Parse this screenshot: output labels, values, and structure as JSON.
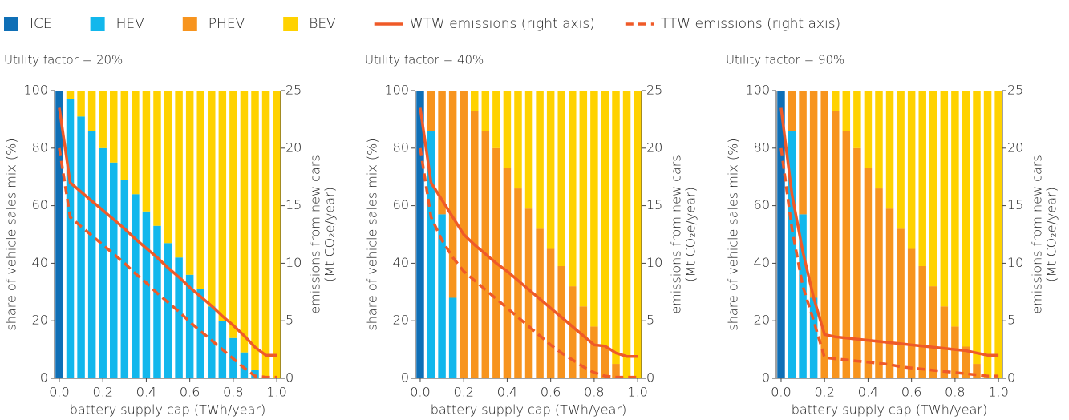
{
  "chart_data": [
    {
      "type": "bar",
      "stacked": true,
      "title": "Utility factor = 20%",
      "x": [
        0,
        0.05,
        0.1,
        0.15,
        0.2,
        0.25,
        0.3,
        0.35,
        0.4,
        0.45,
        0.5,
        0.55,
        0.6,
        0.65,
        0.7,
        0.75,
        0.8,
        0.85,
        0.9,
        0.95,
        1.0
      ],
      "xlabel": "battery supply cap (TWh/year)",
      "ylabel": "share of vehicle sales mix (%)",
      "y2label": [
        "emissions from new cars",
        "(Mt CO₂e/year)"
      ],
      "xlim": [
        -0.022,
        1.018
      ],
      "xticks": [
        {
          "value": 0,
          "label": "0.0"
        },
        {
          "value": 0.2,
          "label": "0.2"
        },
        {
          "value": 0.4,
          "label": "0.4"
        },
        {
          "value": 0.6,
          "label": "0.6"
        },
        {
          "value": 0.8,
          "label": "0.8"
        },
        {
          "value": 1,
          "label": "1.0"
        }
      ],
      "ylim": [
        0,
        100
      ],
      "yticks": [
        0,
        20,
        40,
        60,
        80,
        100
      ],
      "y2lim": [
        0,
        25
      ],
      "y2ticks": [
        0,
        5,
        10,
        15,
        20,
        25
      ],
      "series": [
        {
          "name": "ICE",
          "color": "#0f6fb6",
          "values": [
            100,
            0,
            0,
            0,
            0,
            0,
            0,
            0,
            0,
            0,
            0,
            0,
            0,
            0,
            0,
            0,
            0,
            0,
            0,
            0,
            0
          ]
        },
        {
          "name": "HEV",
          "color": "#12b7ec",
          "values": [
            0,
            97,
            91,
            86,
            80,
            75,
            69,
            64,
            58,
            53,
            47,
            42,
            36,
            31,
            25,
            20,
            14,
            9,
            3,
            0,
            0
          ]
        },
        {
          "name": "PHEV",
          "color": "#f7941e",
          "values": [
            0,
            0,
            0,
            0,
            0,
            0,
            0,
            0,
            0,
            0,
            0,
            0,
            0,
            0,
            0,
            0,
            0,
            0,
            0,
            0,
            0
          ]
        },
        {
          "name": "BEV",
          "color": "#ffd200",
          "values": [
            0,
            3,
            9,
            14,
            20,
            25,
            31,
            36,
            42,
            47,
            53,
            58,
            64,
            69,
            75,
            80,
            86,
            91,
            97,
            100,
            100
          ]
        },
        {
          "name": "WTW emissions (right axis)",
          "type": "line",
          "axis": "y2",
          "color": "#ef5a28",
          "dashed": false,
          "values": [
            23.5,
            17,
            16.2,
            15.4,
            14.6,
            13.8,
            13,
            12.1,
            11.3,
            10.5,
            9.6,
            8.8,
            7.9,
            7.1,
            6.3,
            5.4,
            4.6,
            3.7,
            2.7,
            2,
            2
          ]
        },
        {
          "name": "TTW emissions (right axis)",
          "type": "line",
          "axis": "y2",
          "color": "#ef5a28",
          "dashed": true,
          "values": [
            20,
            14,
            13.2,
            12.4,
            11.6,
            10.8,
            10,
            9.1,
            8.3,
            7.4,
            6.6,
            5.8,
            4.9,
            4.1,
            3.3,
            2.5,
            1.7,
            0.9,
            0.2,
            0.1,
            0.1
          ]
        }
      ]
    },
    {
      "type": "bar",
      "stacked": true,
      "title": "Utility factor = 40%",
      "x": [
        0,
        0.05,
        0.1,
        0.15,
        0.2,
        0.25,
        0.3,
        0.35,
        0.4,
        0.45,
        0.5,
        0.55,
        0.6,
        0.65,
        0.7,
        0.75,
        0.8,
        0.85,
        0.9,
        0.95,
        1.0
      ],
      "xlabel": "battery supply cap (TWh/year)",
      "ylabel": "share of vehicle sales mix (%)",
      "y2label": [
        "emissions from new cars",
        "(Mt CO₂e/year)"
      ],
      "xlim": [
        -0.022,
        1.018
      ],
      "xticks": [
        {
          "value": 0,
          "label": "0.0"
        },
        {
          "value": 0.2,
          "label": "0.2"
        },
        {
          "value": 0.4,
          "label": "0.4"
        },
        {
          "value": 0.6,
          "label": "0.6"
        },
        {
          "value": 0.8,
          "label": "0.8"
        },
        {
          "value": 1,
          "label": "1.0"
        }
      ],
      "ylim": [
        0,
        100
      ],
      "yticks": [
        0,
        20,
        40,
        60,
        80,
        100
      ],
      "y2lim": [
        0,
        25
      ],
      "y2ticks": [
        0,
        5,
        10,
        15,
        20,
        25
      ],
      "series": [
        {
          "color": "#0f6fb6",
          "values": [
            100,
            0,
            0,
            0,
            0,
            0,
            0,
            0,
            0,
            0,
            0,
            0,
            0,
            0,
            0,
            0,
            0,
            0,
            0,
            0,
            0
          ]
        },
        {
          "color": "#12b7ec",
          "values": [
            0,
            86,
            57,
            28,
            0,
            0,
            0,
            0,
            0,
            0,
            0,
            0,
            0,
            0,
            0,
            0,
            0,
            0,
            0,
            0,
            0
          ]
        },
        {
          "color": "#f7941e",
          "values": [
            0,
            14,
            43,
            72,
            100,
            93,
            86,
            80,
            73,
            66,
            59,
            52,
            45,
            39,
            32,
            25,
            18,
            11,
            5,
            0,
            0
          ]
        },
        {
          "color": "#ffd200",
          "values": [
            0,
            0,
            0,
            0,
            0,
            7,
            14,
            20,
            27,
            34,
            41,
            48,
            55,
            61,
            68,
            75,
            82,
            89,
            95,
            100,
            100
          ]
        },
        {
          "type": "line",
          "axis": "y2",
          "color": "#ef5a28",
          "dashed": false,
          "values": [
            23.5,
            17,
            15.5,
            14,
            12.5,
            11.6,
            10.8,
            10,
            9.3,
            8.5,
            7.7,
            6.9,
            6.1,
            5.3,
            4.5,
            3.7,
            2.9,
            2.8,
            2.2,
            1.9,
            1.9
          ]
        },
        {
          "type": "line",
          "axis": "y2",
          "color": "#ef5a28",
          "dashed": true,
          "values": [
            20,
            14,
            12,
            10.5,
            9.3,
            8.5,
            7.7,
            6.9,
            6.1,
            5.3,
            4.5,
            3.7,
            2.9,
            2.2,
            1.6,
            1,
            0.5,
            0.2,
            0.1,
            0.1,
            0.1
          ]
        }
      ]
    },
    {
      "type": "bar",
      "stacked": true,
      "title": "Utility factor = 90%",
      "x": [
        0,
        0.05,
        0.1,
        0.15,
        0.2,
        0.25,
        0.3,
        0.35,
        0.4,
        0.45,
        0.5,
        0.55,
        0.6,
        0.65,
        0.7,
        0.75,
        0.8,
        0.85,
        0.9,
        0.95,
        1.0
      ],
      "xlabel": "battery supply cap (TWh/year)",
      "ylabel": "share of vehicle sales mix (%)",
      "y2label": [
        "emissions from new cars",
        "(Mt CO₂e/year)"
      ],
      "xlim": [
        -0.022,
        1.018
      ],
      "xticks": [
        {
          "value": 0,
          "label": "0.0"
        },
        {
          "value": 0.2,
          "label": "0.2"
        },
        {
          "value": 0.4,
          "label": "0.4"
        },
        {
          "value": 0.6,
          "label": "0.6"
        },
        {
          "value": 0.8,
          "label": "0.8"
        },
        {
          "value": 1,
          "label": "1.0"
        }
      ],
      "ylim": [
        0,
        100
      ],
      "yticks": [
        0,
        20,
        40,
        60,
        80,
        100
      ],
      "y2lim": [
        0,
        25
      ],
      "y2ticks": [
        0,
        5,
        10,
        15,
        20,
        25
      ],
      "series": [
        {
          "color": "#0f6fb6",
          "values": [
            100,
            0,
            0,
            0,
            0,
            0,
            0,
            0,
            0,
            0,
            0,
            0,
            0,
            0,
            0,
            0,
            0,
            0,
            0,
            0,
            0
          ]
        },
        {
          "color": "#12b7ec",
          "values": [
            0,
            86,
            57,
            28,
            0,
            0,
            0,
            0,
            0,
            0,
            0,
            0,
            0,
            0,
            0,
            0,
            0,
            0,
            0,
            0,
            0
          ]
        },
        {
          "color": "#f7941e",
          "values": [
            0,
            14,
            43,
            72,
            100,
            93,
            86,
            80,
            73,
            66,
            59,
            52,
            45,
            39,
            32,
            25,
            18,
            11,
            5,
            0,
            0
          ]
        },
        {
          "color": "#ffd200",
          "values": [
            0,
            0,
            0,
            0,
            0,
            7,
            14,
            20,
            27,
            34,
            41,
            48,
            55,
            61,
            68,
            75,
            82,
            89,
            95,
            100,
            100
          ]
        },
        {
          "type": "line",
          "axis": "y2",
          "color": "#ef5a28",
          "dashed": false,
          "values": [
            23.5,
            16,
            11,
            7,
            3.8,
            3.6,
            3.5,
            3.4,
            3.3,
            3.2,
            3.1,
            3,
            2.9,
            2.8,
            2.7,
            2.6,
            2.5,
            2.4,
            2.2,
            2,
            2
          ]
        },
        {
          "type": "line",
          "axis": "y2",
          "color": "#ef5a28",
          "dashed": true,
          "values": [
            20,
            13,
            8,
            5,
            1.8,
            1.7,
            1.6,
            1.5,
            1.4,
            1.3,
            1.2,
            1,
            0.9,
            0.8,
            0.7,
            0.6,
            0.5,
            0.4,
            0.3,
            0.2,
            0.2
          ]
        }
      ]
    }
  ]
}
